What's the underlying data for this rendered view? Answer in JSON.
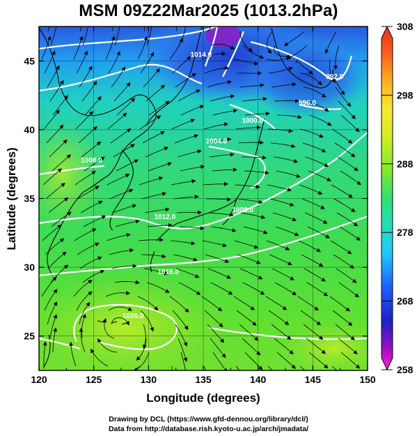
{
  "title": "MSM 09Z22Mar2025 (1013.2hPa)",
  "credits": [
    "Drawing by DCL (https://www.gfd-dennou.org/library/dcl/)",
    "Data from http://database.rish.kyoto-u.ac.jp/arch/jmadata/"
  ],
  "chart_data": {
    "type": "map",
    "xlabel": "Longitude (degrees)",
    "ylabel": "Latitude  (degrees)",
    "xlim": [
      120,
      150
    ],
    "ylim": [
      22.5,
      47.5
    ],
    "xticks": [
      "120",
      "125",
      "130",
      "135",
      "140",
      "145",
      "150"
    ],
    "yticks": [
      "25",
      "30",
      "35",
      "40",
      "45"
    ],
    "grid": true,
    "fill_variable_range": [
      258,
      308
    ],
    "colorbar": {
      "labels": [
        "308",
        "298",
        "288",
        "278",
        "268",
        "258"
      ],
      "range": [
        258,
        308
      ],
      "colors": [
        "#ff1fd0",
        "#a010c0",
        "#2020c8",
        "#1e60ff",
        "#20c8ff",
        "#20e0b8",
        "#30e070",
        "#80e830",
        "#d0f020",
        "#f8e830",
        "#ffb020",
        "#ff6020",
        "#e03020"
      ]
    },
    "isobar_labels": [
      {
        "text": "1014.0",
        "lon": 134.8,
        "lat": 45.3
      },
      {
        "text": "992.0",
        "lon": 147.0,
        "lat": 43.7
      },
      {
        "text": "996.0",
        "lon": 144.5,
        "lat": 41.8
      },
      {
        "text": "1000.0",
        "lon": 139.5,
        "lat": 40.5
      },
      {
        "text": "1004.0",
        "lon": 136.2,
        "lat": 39.0
      },
      {
        "text": "1008.0",
        "lon": 124.8,
        "lat": 37.6
      },
      {
        "text": "1008.0",
        "lon": 138.6,
        "lat": 34.0
      },
      {
        "text": "1012.0",
        "lon": 131.5,
        "lat": 33.5
      },
      {
        "text": "1016.0",
        "lon": 131.8,
        "lat": 29.5
      },
      {
        "text": "1020.0",
        "lon": 128.6,
        "lat": 26.3
      }
    ]
  }
}
